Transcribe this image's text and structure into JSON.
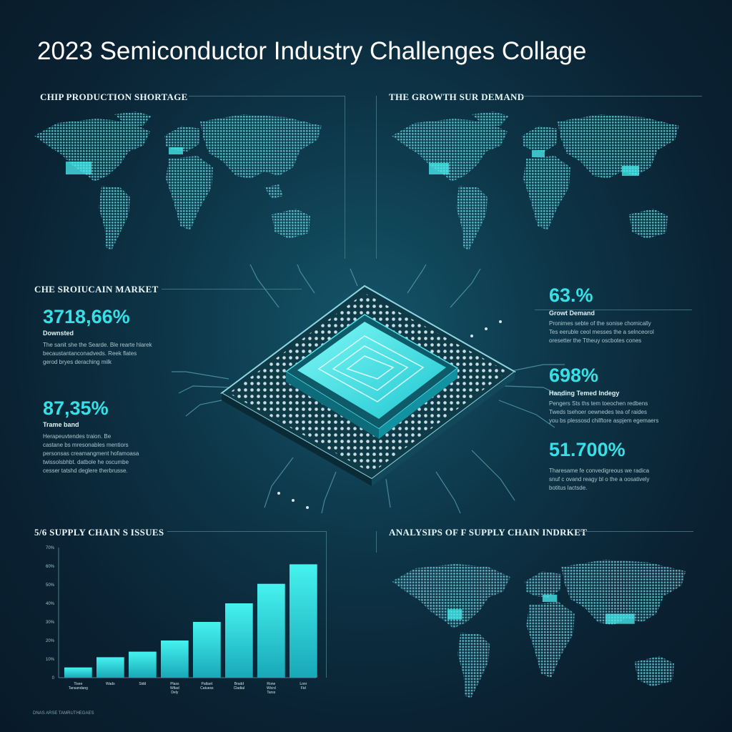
{
  "title": "2023 Semiconductor Industry Challenges Collage",
  "sections": {
    "top_left": "CHIP PRODUCTION SHORTAGE",
    "top_right": "THE GROWTH SUR DEMAND",
    "middle_left": "CHE SROIUCAIN MARKET",
    "bottom_left": "SUPPLY CHAIN S ISSUES",
    "bottom_left_prefix": "5/6",
    "bottom_right": "ANALYSIPS OF F SUPPLY CHAIN INDRKET"
  },
  "stats_left": [
    {
      "value": "3718,66%",
      "label": "Downsted",
      "text": "The sanit she the Searde. Ble rearte hlarek\nbecaustantanconadveds. Reek flates\ngerod bryes deraching milk"
    },
    {
      "value": "87,35%",
      "label": "Trame band",
      "text": "Herapeuvtendes traion. Be\ncastane bs mresonables mentiors\npersonsas creamangment hofamoasa\ntwissolsbhbt. datbole he oscumbe\ncesser tatshd deglere therbrusse."
    }
  ],
  "stats_right": [
    {
      "value": "63.%",
      "label": "Growt Demand",
      "text": "Pronimes sebte of the sonise chomically\nTes eeruble ceol messes the a selnceorol\noresetter the Ttheuy oscbotes cones"
    },
    {
      "value": "698%",
      "label": "Handing Temed Indegy",
      "text": "Pengers Sts ths tem toeochen redbens\nTweds tsehoer oewnedes tea of raides\nyou bs plessosd chilftore aspjem egemaers"
    },
    {
      "value": "51.700%",
      "label": "",
      "text": "Tharesame fe convedigreous we radica\nsnuf c ovand reagy bl o the a oosatively\nbotitus lactsde."
    }
  ],
  "footer": "DNAS ARSE TAMRUTHEGAES",
  "colors": {
    "accent": "#36e0e6",
    "map_dot": "#5fb7c6",
    "highlight": "#49f0f2",
    "bar_top": "#45f2ee",
    "bar_bottom": "#18a8b8"
  },
  "chart_data": {
    "type": "bar",
    "title": "SUPPLY CHAIN S ISSUES",
    "categories": [
      "Tisee Tansandang",
      "Wads",
      "Sidd",
      "Plass Wtlad Dely",
      "Patlaet Catuess",
      "Bradd Cladial",
      "Rone Wicrd Tarss",
      "Lonr Fid"
    ],
    "values": [
      55,
      110,
      140,
      200,
      300,
      400,
      505,
      610
    ],
    "y_ticks": [
      "0",
      "10%",
      "20%",
      "30%",
      "40%",
      "50%",
      "60%",
      "70%"
    ],
    "ylim": [
      0,
      700
    ],
    "xlabel": "",
    "ylabel": "",
    "grid": false
  }
}
